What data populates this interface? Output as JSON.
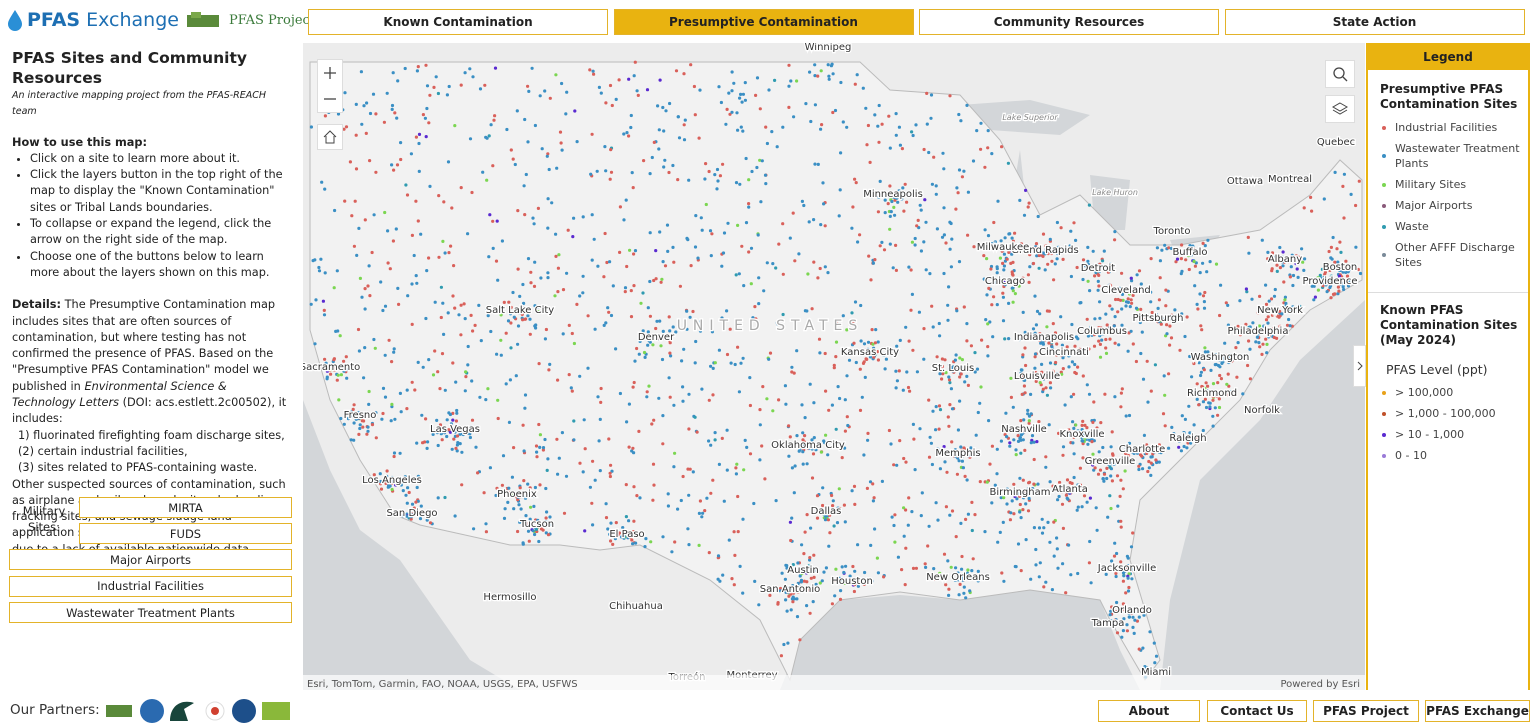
{
  "header": {
    "brand_bold": "PFAS",
    "brand_rest": "Exchange",
    "lab": "PFAS Project Lab",
    "tabs": [
      "Known Contamination",
      "Presumptive Contamination",
      "Community Resources",
      "State Action"
    ],
    "active_tab": 1
  },
  "sidebar": {
    "title": "PFAS Sites and Community Resources",
    "subtitle": "An interactive mapping project from the PFAS-REACH team",
    "howto_heading": "How to use this map:",
    "howto": [
      "Click on a site to learn more about it.",
      "Click the layers button in the top right of the map to display the \"Known Contamination\" sites or Tribal Lands boundaries.",
      "To collapse or expand the legend, click the arrow on the right side of the map.",
      "Choose one of the buttons below to learn more about the layers shown on this map."
    ],
    "details_label": "Details:",
    "details_text": "The Presumptive Contamination map includes sites that are often sources of contamination, but where testing has not confirmed the presence of PFAS. Based on the \"Presumptive PFAS Contamination\" model we published in",
    "journal": "Environmental Science & Technology Letters",
    "doi": "(DOI: acs.estlett.2c00502), it includes:",
    "list": [
      "1) fluorinated firefighting foam discharge sites,",
      "(2) certain industrial facilities,",
      "(3) sites related to PFAS-containing waste."
    ],
    "other": "Other suspected sources of contamination, such as airplane and railroad crash sites, hydraulic fracking sites, and sewage sludge land application sites were not included on the map due to a lack of available nationwide data.",
    "military_label": "Military Sites:",
    "military_buttons": [
      "MIRTA",
      "FUDS"
    ],
    "buttons": [
      "Major Airports",
      "Industrial Facilities",
      "Wastewater Treatment Plants"
    ]
  },
  "map": {
    "attribution": "Esri, TomTom, Garmin, FAO, NOAA, USGS, EPA, USFWS",
    "powered": "Powered by Esri",
    "country_label": "UNITED STATES",
    "lakes": [
      "Lake Superior",
      "Lake Huron"
    ],
    "places": [
      "Winnipeg",
      "Quebec",
      "Ottawa",
      "Montreal",
      "Toronto",
      "Buffalo",
      "Albany",
      "Boston",
      "Providence",
      "New York",
      "Philadelphia",
      "Washington",
      "Richmond",
      "Norfolk",
      "Raleigh",
      "Charlotte",
      "Greenville",
      "Atlanta",
      "Birmingham",
      "Jacksonville",
      "Orlando",
      "Tampa",
      "Miami",
      "New Orleans",
      "Houston",
      "Austin",
      "San Antonio",
      "Dallas",
      "Oklahoma City",
      "Memphis",
      "Nashville",
      "Knoxville",
      "Louisville",
      "Cincinnati",
      "Columbus",
      "Pittsburgh",
      "Cleveland",
      "Detroit",
      "Grand Rapids",
      "Milwaukee",
      "Chicago",
      "Indianapolis",
      "St. Louis",
      "Kansas City",
      "Minneapolis",
      "Denver",
      "Salt Lake City",
      "Las Vegas",
      "Los Angeles",
      "San Diego",
      "Phoenix",
      "Tucson",
      "El Paso",
      "Fresno",
      "Sacramento",
      "Hermosillo",
      "Chihuahua",
      "Monterrey",
      "Torreón"
    ]
  },
  "legend": {
    "title": "Legend",
    "presumptive_heading": "Presumptive PFAS Contamination Sites",
    "presumptive_items": [
      {
        "label": "Industrial Facilities",
        "color": "#d9605a"
      },
      {
        "label": "Wastewater Treatment Plants",
        "color": "#3a8fc4"
      },
      {
        "label": "Military Sites",
        "color": "#7bd651"
      },
      {
        "label": "Major Airports",
        "color": "#8a5a7a"
      },
      {
        "label": "Waste",
        "color": "#2f9bb0"
      },
      {
        "label": "Other AFFF Discharge Sites",
        "color": "#7a8a99"
      }
    ],
    "known_heading": "Known PFAS Contamination Sites (May 2024)",
    "level_heading": "PFAS Level (ppt)",
    "known_items": [
      {
        "label": "> 100,000",
        "color": "#e8a21a"
      },
      {
        "label": "> 1,000 - 100,000",
        "color": "#c0502a"
      },
      {
        "label": "> 10 - 1,000",
        "color": "#5a2ad0"
      },
      {
        "label": "0 - 10",
        "color": "#9a7ad8"
      }
    ]
  },
  "footer": {
    "partners": "Our Partners:",
    "links": [
      "About",
      "Contact Us",
      "PFAS Project",
      "PFAS Exchange"
    ]
  }
}
